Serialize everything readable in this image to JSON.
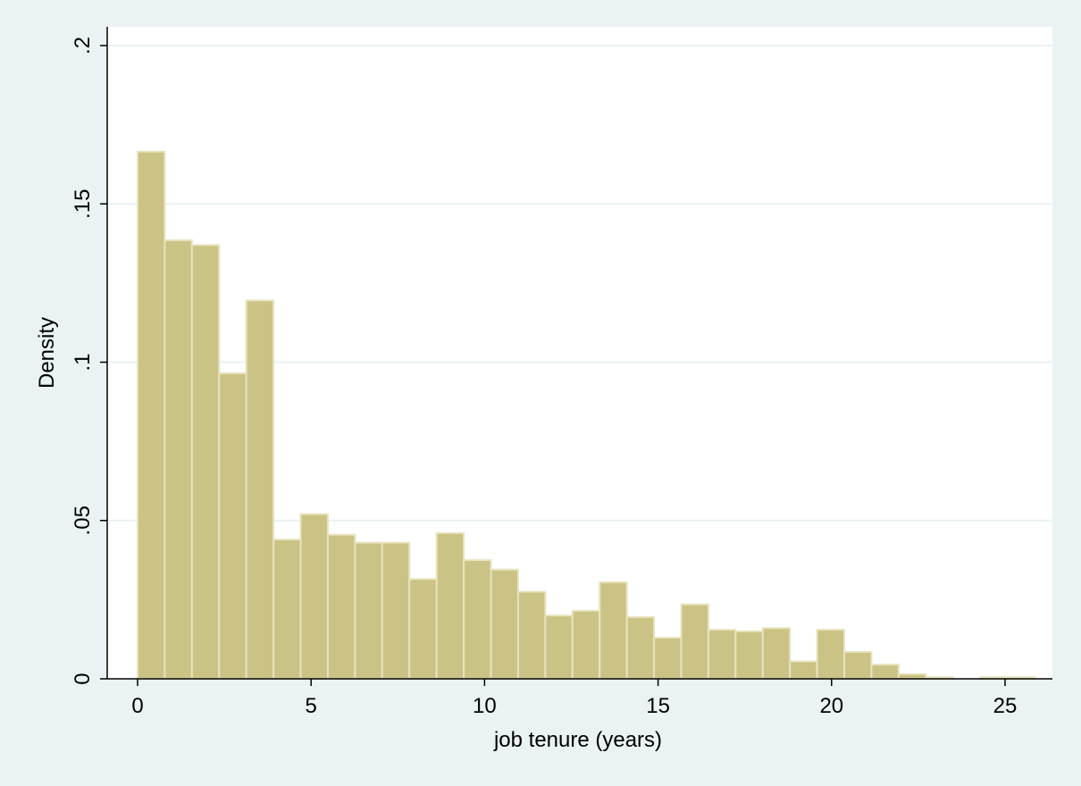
{
  "chart_data": {
    "type": "bar",
    "subtype": "histogram",
    "title": "",
    "xlabel": "job tenure (years)",
    "ylabel": "Density",
    "xlim": [
      0,
      25.9
    ],
    "ylim": [
      0,
      0.2
    ],
    "x_ticks": [
      0,
      5,
      10,
      15,
      20,
      25
    ],
    "x_tick_labels": [
      "0",
      "5",
      "10",
      "15",
      "20",
      "25"
    ],
    "y_ticks": [
      0,
      0.05,
      0.1,
      0.15,
      0.2
    ],
    "y_tick_labels": [
      "0",
      ".05",
      ".1",
      ".15",
      ".2"
    ],
    "grid": "horizontal",
    "bin_width": 0.7833,
    "bin_start": 0,
    "bins": [
      {
        "x_start": 0.0,
        "value": 0.1665
      },
      {
        "x_start": 0.783,
        "value": 0.1385
      },
      {
        "x_start": 1.567,
        "value": 0.137
      },
      {
        "x_start": 2.35,
        "value": 0.0965
      },
      {
        "x_start": 3.133,
        "value": 0.1195
      },
      {
        "x_start": 3.917,
        "value": 0.044
      },
      {
        "x_start": 4.7,
        "value": 0.052
      },
      {
        "x_start": 5.483,
        "value": 0.0455
      },
      {
        "x_start": 6.267,
        "value": 0.043
      },
      {
        "x_start": 7.05,
        "value": 0.043
      },
      {
        "x_start": 7.833,
        "value": 0.0315
      },
      {
        "x_start": 8.617,
        "value": 0.046
      },
      {
        "x_start": 9.4,
        "value": 0.0375
      },
      {
        "x_start": 10.183,
        "value": 0.0345
      },
      {
        "x_start": 10.967,
        "value": 0.0275
      },
      {
        "x_start": 11.75,
        "value": 0.02
      },
      {
        "x_start": 12.533,
        "value": 0.0215
      },
      {
        "x_start": 13.317,
        "value": 0.0305
      },
      {
        "x_start": 14.1,
        "value": 0.0195
      },
      {
        "x_start": 14.883,
        "value": 0.013
      },
      {
        "x_start": 15.667,
        "value": 0.0235
      },
      {
        "x_start": 16.45,
        "value": 0.0155
      },
      {
        "x_start": 17.233,
        "value": 0.015
      },
      {
        "x_start": 18.017,
        "value": 0.016
      },
      {
        "x_start": 18.8,
        "value": 0.0055
      },
      {
        "x_start": 19.583,
        "value": 0.0155
      },
      {
        "x_start": 20.367,
        "value": 0.0085
      },
      {
        "x_start": 21.15,
        "value": 0.0045
      },
      {
        "x_start": 21.933,
        "value": 0.0015
      },
      {
        "x_start": 22.717,
        "value": 0.0005
      },
      {
        "x_start": 23.5,
        "value": 0.0
      },
      {
        "x_start": 24.283,
        "value": 0.0005
      },
      {
        "x_start": 25.067,
        "value": 0.0005
      }
    ],
    "colors": {
      "bar_fill": "#cbc385",
      "bar_stroke": "#e8e3bf",
      "plot_background": "#ffffff",
      "outer_background": "#eaf2f3",
      "grid": "#eaf2f3",
      "axis": "#000000"
    }
  }
}
